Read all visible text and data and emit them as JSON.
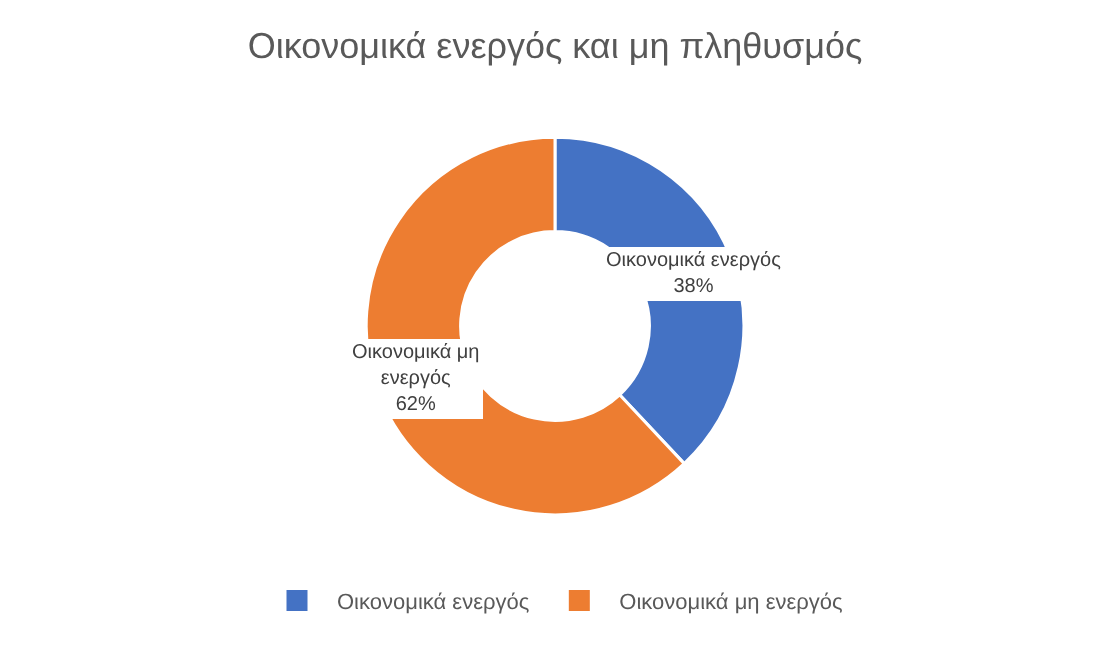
{
  "chart_data": {
    "type": "donut",
    "title": "Οικονομικά ενεργός και μη πληθυσμός",
    "categories": [
      "Οικονομικά ενεργός",
      "Οικονομικά μη ενεργός"
    ],
    "values": [
      38,
      62
    ],
    "colors": [
      "#4472c4",
      "#ed7d31"
    ],
    "value_labels": [
      "38%",
      "62%"
    ],
    "legend": "bottom"
  }
}
